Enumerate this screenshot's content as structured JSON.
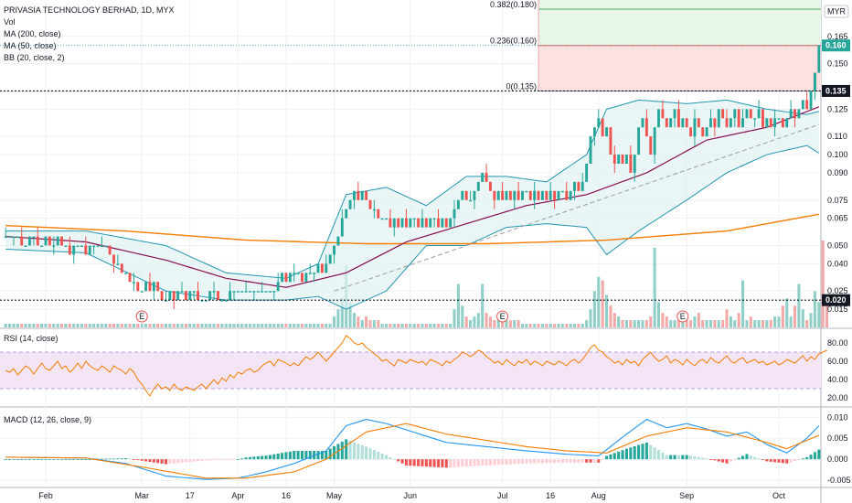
{
  "header": {
    "symbol_title": "PRIVASIA TECHNOLOGY BERHAD, 1D, MYX",
    "indicator_labels": [
      "Vol",
      "MA (200, close)",
      "MA (50, close)",
      "BB (20, close, 2)"
    ]
  },
  "currency": "MYR",
  "colors": {
    "up": "#26a69a",
    "down": "#ef5350",
    "ma200": "#f57c00",
    "ma50": "#880e4f",
    "bb": "#2196b0",
    "bb_fill": "#e0f2f1",
    "rsi_line": "#f57c00",
    "rsi_band": "#f3e5f5",
    "macd_line": "#2196f3",
    "signal_line": "#f57c00"
  },
  "chart_data": [
    {
      "type": "candlestick",
      "name": "price",
      "ylim": [
        0.005,
        0.185
      ],
      "y_ticks": [
        "0.165",
        "0.150",
        "0.135",
        "0.125",
        "0.110",
        "0.100",
        "0.090",
        "0.075",
        "0.065",
        "0.050",
        "0.040",
        "0.025",
        "0.015"
      ],
      "y_tick_values": [
        0.165,
        0.15,
        0.135,
        0.125,
        0.11,
        0.1,
        0.09,
        0.075,
        0.065,
        0.05,
        0.04,
        0.025,
        0.015
      ],
      "x_ticks": [
        "Feb",
        "Mar",
        "17",
        "Apr",
        "16",
        "May",
        "Jun",
        "Jul",
        "16",
        "Aug",
        "Sep",
        "Oct"
      ],
      "x_tick_index": [
        10,
        34,
        46,
        58,
        70,
        82,
        101,
        124,
        136,
        148,
        170,
        193
      ],
      "last_price_label": "0.160",
      "last_price": 0.16,
      "price_lines": [
        {
          "label": "0.135",
          "value": 0.135
        },
        {
          "label": "0.020",
          "value": 0.02
        }
      ],
      "fib_levels": [
        {
          "label": "0.382(0.180)",
          "value": 0.18
        },
        {
          "label": "0.236(0.160)",
          "value": 0.16
        },
        {
          "label": "0(0.135)",
          "value": 0.135
        }
      ],
      "fib_start_index": 133,
      "earnings_markers": {
        "label": "E",
        "index": [
          34,
          124,
          169
        ]
      },
      "close": [
        0.055,
        0.055,
        0.055,
        0.055,
        0.05,
        0.05,
        0.055,
        0.055,
        0.05,
        0.05,
        0.055,
        0.05,
        0.05,
        0.055,
        0.05,
        0.05,
        0.045,
        0.05,
        0.05,
        0.05,
        0.045,
        0.05,
        0.05,
        0.05,
        0.05,
        0.05,
        0.045,
        0.04,
        0.04,
        0.035,
        0.035,
        0.03,
        0.03,
        0.025,
        0.025,
        0.03,
        0.025,
        0.03,
        0.025,
        0.02,
        0.02,
        0.025,
        0.02,
        0.025,
        0.025,
        0.02,
        0.025,
        0.025,
        0.02,
        0.02,
        0.02,
        0.025,
        0.025,
        0.02,
        0.02,
        0.02,
        0.025,
        0.025,
        0.025,
        0.025,
        0.025,
        0.025,
        0.025,
        0.025,
        0.025,
        0.025,
        0.025,
        0.025,
        0.03,
        0.035,
        0.03,
        0.035,
        0.035,
        0.035,
        0.03,
        0.035,
        0.035,
        0.035,
        0.04,
        0.035,
        0.04,
        0.045,
        0.05,
        0.055,
        0.065,
        0.07,
        0.075,
        0.08,
        0.075,
        0.08,
        0.075,
        0.07,
        0.07,
        0.065,
        0.065,
        0.065,
        0.06,
        0.065,
        0.06,
        0.065,
        0.06,
        0.065,
        0.065,
        0.06,
        0.065,
        0.06,
        0.065,
        0.065,
        0.06,
        0.065,
        0.06,
        0.065,
        0.07,
        0.075,
        0.08,
        0.075,
        0.075,
        0.08,
        0.085,
        0.09,
        0.085,
        0.08,
        0.075,
        0.08,
        0.075,
        0.08,
        0.075,
        0.08,
        0.075,
        0.08,
        0.08,
        0.075,
        0.08,
        0.075,
        0.08,
        0.075,
        0.08,
        0.075,
        0.08,
        0.08,
        0.075,
        0.08,
        0.085,
        0.08,
        0.085,
        0.095,
        0.11,
        0.115,
        0.12,
        0.11,
        0.115,
        0.1,
        0.095,
        0.1,
        0.095,
        0.1,
        0.09,
        0.1,
        0.115,
        0.12,
        0.11,
        0.1,
        0.115,
        0.125,
        0.12,
        0.115,
        0.12,
        0.125,
        0.115,
        0.12,
        0.115,
        0.11,
        0.12,
        0.115,
        0.11,
        0.115,
        0.12,
        0.115,
        0.125,
        0.12,
        0.115,
        0.12,
        0.125,
        0.115,
        0.12,
        0.125,
        0.12,
        0.12,
        0.125,
        0.115,
        0.12,
        0.115,
        0.12,
        0.12,
        0.115,
        0.12,
        0.125,
        0.12,
        0.125,
        0.13,
        0.125,
        0.135,
        0.145,
        0.16
      ],
      "series": [
        {
          "name": "MA (200, close)",
          "x": [
            0,
            30,
            60,
            90,
            120,
            150,
            180,
            205
          ],
          "values": [
            0.061,
            0.058,
            0.053,
            0.051,
            0.051,
            0.053,
            0.058,
            0.068
          ]
        },
        {
          "name": "MA (50, close)",
          "x": [
            0,
            20,
            40,
            55,
            70,
            85,
            100,
            115,
            130,
            145,
            160,
            175,
            190,
            205
          ],
          "values": [
            0.055,
            0.052,
            0.042,
            0.032,
            0.027,
            0.035,
            0.052,
            0.062,
            0.072,
            0.078,
            0.09,
            0.108,
            0.115,
            0.128
          ]
        },
        {
          "name": "BB (20, close, 2)",
          "x": [
            0,
            20,
            40,
            55,
            70,
            78,
            85,
            95,
            105,
            115,
            125,
            135,
            145,
            150,
            158,
            170,
            180,
            190,
            200,
            205
          ],
          "upper": [
            0.058,
            0.058,
            0.05,
            0.035,
            0.032,
            0.04,
            0.078,
            0.082,
            0.072,
            0.088,
            0.088,
            0.085,
            0.1,
            0.125,
            0.13,
            0.128,
            0.13,
            0.125,
            0.122,
            0.125
          ],
          "lower": [
            0.048,
            0.046,
            0.025,
            0.02,
            0.02,
            0.022,
            0.015,
            0.025,
            0.05,
            0.05,
            0.06,
            0.062,
            0.06,
            0.045,
            0.058,
            0.075,
            0.09,
            0.1,
            0.105,
            0.098
          ]
        },
        {
          "name": "trend",
          "x": [
            82,
            205
          ],
          "values": [
            0.025,
            0.118
          ]
        }
      ]
    },
    {
      "type": "bar",
      "name": "volume",
      "values": [
        1,
        1,
        1,
        1,
        1,
        1,
        1,
        1,
        1,
        1,
        1,
        1,
        1,
        1,
        1,
        1,
        1,
        1,
        1,
        1,
        1,
        1,
        1,
        1,
        1,
        1,
        1,
        1,
        1,
        1,
        1,
        1,
        1,
        1,
        1,
        1,
        1,
        1,
        1,
        1,
        1,
        1,
        1,
        1,
        1,
        1,
        1,
        1,
        1,
        1,
        1,
        1,
        1,
        1,
        1,
        1,
        1,
        1,
        1,
        1,
        1,
        1,
        1,
        1,
        1,
        1,
        1,
        1,
        1,
        1,
        1,
        1,
        1,
        1,
        1,
        1,
        1,
        1,
        1,
        1,
        1,
        1,
        3,
        5,
        8,
        17,
        7,
        4,
        3,
        2,
        3,
        2,
        2,
        2,
        1,
        1,
        1,
        1,
        1,
        1,
        1,
        1,
        1,
        1,
        1,
        1,
        1,
        1,
        1,
        1,
        1,
        1,
        5,
        12,
        6,
        3,
        2,
        3,
        4,
        12,
        4,
        3,
        2,
        2,
        2,
        2,
        2,
        2,
        2,
        1,
        1,
        1,
        1,
        1,
        1,
        1,
        1,
        1,
        1,
        1,
        1,
        1,
        1,
        1,
        1,
        2,
        5,
        10,
        14,
        13,
        9,
        6,
        4,
        3,
        2,
        2,
        2,
        2,
        2,
        2,
        2,
        3,
        22,
        7,
        4,
        3,
        2,
        2,
        2,
        2,
        2,
        2,
        3,
        4,
        2,
        2,
        2,
        2,
        2,
        2,
        5,
        3,
        2,
        4,
        13,
        2,
        3,
        2,
        2,
        2,
        2,
        2,
        3,
        3,
        6,
        8,
        3,
        6,
        12,
        5,
        2,
        4,
        10,
        7,
        24,
        8
      ]
    },
    {
      "type": "line",
      "name": "RSI (14, close)",
      "label": "RSI (14, close)",
      "ylim": [
        15,
        95
      ],
      "y_ticks": [
        "80.00",
        "60.00",
        "40.00",
        "20.00"
      ],
      "y_tick_values": [
        80,
        60,
        40,
        20
      ],
      "band": [
        30,
        70
      ],
      "values": [
        50,
        48,
        52,
        45,
        50,
        55,
        52,
        46,
        52,
        58,
        52,
        50,
        55,
        60,
        52,
        55,
        48,
        52,
        58,
        52,
        60,
        55,
        52,
        50,
        55,
        52,
        48,
        55,
        52,
        50,
        46,
        52,
        48,
        40,
        35,
        28,
        22,
        30,
        35,
        30,
        32,
        28,
        35,
        30,
        28,
        32,
        30,
        28,
        32,
        35,
        30,
        35,
        40,
        35,
        42,
        38,
        45,
        42,
        48,
        46,
        50,
        52,
        48,
        50,
        55,
        58,
        60,
        55,
        62,
        60,
        58,
        55,
        58,
        55,
        60,
        65,
        62,
        65,
        70,
        65,
        60,
        65,
        70,
        75,
        80,
        88,
        85,
        80,
        78,
        80,
        75,
        72,
        68,
        65,
        60,
        62,
        58,
        55,
        62,
        60,
        58,
        62,
        60,
        58,
        60,
        56,
        62,
        60,
        58,
        55,
        60,
        58,
        62,
        65,
        70,
        68,
        65,
        68,
        72,
        70,
        65,
        62,
        58,
        60,
        56,
        62,
        58,
        55,
        60,
        58,
        62,
        56,
        60,
        58,
        55,
        60,
        58,
        56,
        60,
        58,
        55,
        60,
        62,
        58,
        62,
        68,
        75,
        78,
        72,
        70,
        65,
        62,
        58,
        60,
        56,
        62,
        58,
        60,
        55,
        62,
        66,
        70,
        64,
        60,
        62,
        66,
        58,
        62,
        60,
        56,
        62,
        58,
        55,
        60,
        62,
        58,
        64,
        60,
        58,
        62,
        66,
        60,
        58,
        62,
        64,
        58,
        60,
        62,
        58,
        60,
        56,
        58,
        60,
        56,
        58,
        62,
        60,
        58,
        62,
        66,
        60,
        65,
        62,
        68,
        70,
        72
      ]
    },
    {
      "type": "line",
      "name": "MACD (12, 26, close, 9)",
      "label": "MACD (12, 26, close, 9)",
      "ylim": [
        -0.0065,
        0.0118
      ],
      "y_ticks": [
        "0.010",
        "0.005",
        "0.000",
        "-0.005"
      ],
      "y_tick_values": [
        0.01,
        0.005,
        0,
        -0.005
      ],
      "macd_x": [
        0,
        20,
        30,
        40,
        50,
        58,
        65,
        72,
        80,
        85,
        90,
        95,
        100,
        110,
        120,
        130,
        140,
        148,
        155,
        160,
        165,
        170,
        175,
        180,
        185,
        190,
        195,
        200,
        205
      ],
      "macd": [
        0.0005,
        0.0003,
        -0.001,
        -0.004,
        -0.0048,
        -0.0045,
        -0.003,
        -0.001,
        0.002,
        0.008,
        0.0095,
        0.0085,
        0.007,
        0.004,
        0.003,
        0.002,
        0.0012,
        0.0008,
        0.006,
        0.0095,
        0.0075,
        0.0085,
        0.0072,
        0.0055,
        0.0065,
        0.0035,
        0.0015,
        0.005,
        0.01
      ],
      "signal_x": [
        0,
        20,
        35,
        50,
        60,
        72,
        80,
        90,
        100,
        110,
        120,
        130,
        140,
        150,
        160,
        170,
        180,
        190,
        195,
        205
      ],
      "signal": [
        0.0005,
        0.0003,
        -0.002,
        -0.0045,
        -0.0045,
        -0.003,
        0.0,
        0.0065,
        0.0085,
        0.006,
        0.0045,
        0.003,
        0.002,
        0.0015,
        0.0055,
        0.0075,
        0.0065,
        0.004,
        0.0025,
        0.0065
      ]
    }
  ]
}
